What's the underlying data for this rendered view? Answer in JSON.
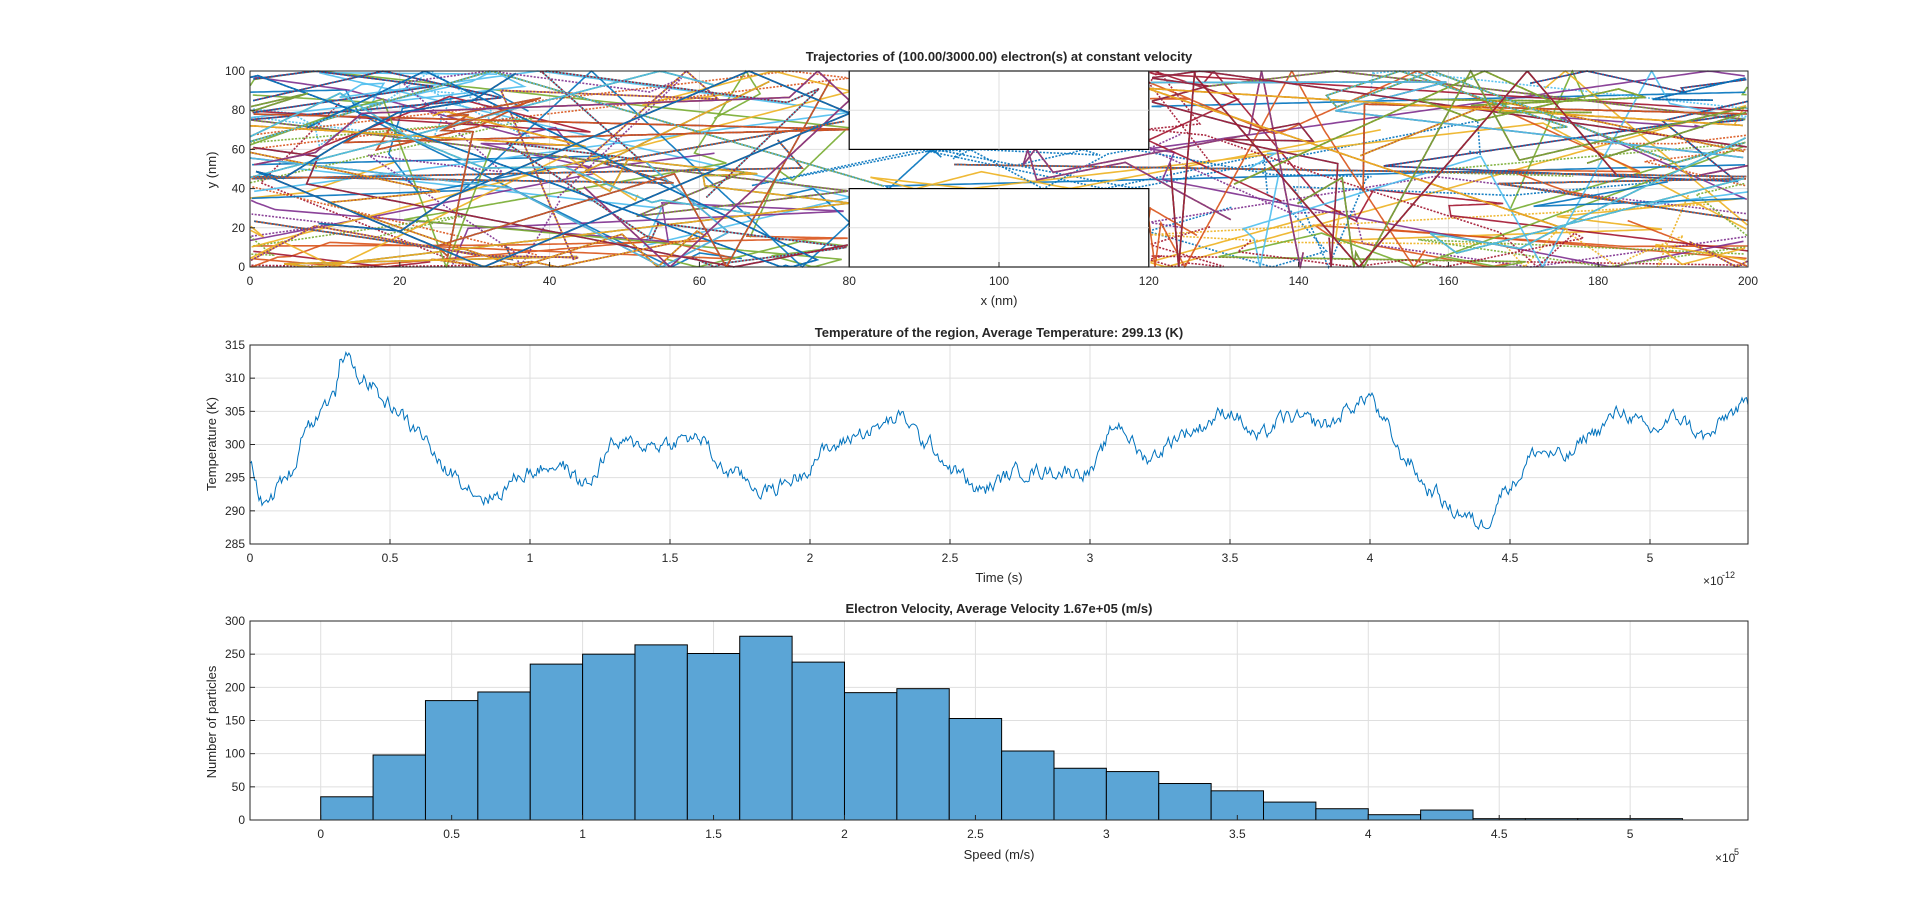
{
  "chart_data": [
    {
      "type": "line",
      "title": "Trajectories of (100.00/3000.00) electron(s) at constant velocity",
      "xlabel": "x (nm)",
      "ylabel": "y (nm)",
      "xlim": [
        0,
        200
      ],
      "ylim": [
        0,
        100
      ],
      "xticks": [
        "0",
        "20",
        "40",
        "60",
        "80",
        "100",
        "120",
        "140",
        "160",
        "180",
        "200"
      ],
      "yticks": [
        "0",
        "20",
        "40",
        "60",
        "80",
        "100"
      ],
      "grid": true,
      "num_trajectories": 100,
      "obstacles": [
        {
          "x": [
            80,
            120
          ],
          "y": [
            60,
            100
          ]
        },
        {
          "x": [
            80,
            120
          ],
          "y": [
            0,
            40
          ]
        }
      ],
      "series_colors": [
        "#0072bd",
        "#d95319",
        "#edb120",
        "#7e2f8e",
        "#77ac30",
        "#4dbeee",
        "#a2142f"
      ]
    },
    {
      "type": "line",
      "title": "Temperature of the region, Average Temperature: 299.13 (K)",
      "xlabel": "Time (s)",
      "ylabel": "Temperature (K)",
      "xlim": [
        0,
        5.35e-12
      ],
      "ylim": [
        285,
        315
      ],
      "xticks": [
        "0",
        "0.5",
        "1",
        "1.5",
        "2",
        "2.5",
        "3",
        "3.5",
        "4",
        "4.5",
        "5"
      ],
      "yticks": [
        "285",
        "290",
        "295",
        "300",
        "305",
        "310",
        "315"
      ],
      "x_multiplier_base": "×10",
      "x_multiplier_exp": "-12",
      "grid": true,
      "line_color": "#0072bd",
      "keypoints": [
        [
          0,
          297
        ],
        [
          0.05,
          291
        ],
        [
          0.15,
          296
        ],
        [
          0.2,
          303
        ],
        [
          0.3,
          307
        ],
        [
          0.33,
          313.5
        ],
        [
          0.4,
          310
        ],
        [
          0.5,
          306
        ],
        [
          0.6,
          302
        ],
        [
          0.7,
          296
        ],
        [
          0.85,
          292
        ],
        [
          1.0,
          296
        ],
        [
          1.1,
          297
        ],
        [
          1.2,
          294
        ],
        [
          1.3,
          300
        ],
        [
          1.45,
          300
        ],
        [
          1.6,
          301
        ],
        [
          1.7,
          296
        ],
        [
          1.85,
          293
        ],
        [
          1.95,
          295
        ],
        [
          2.05,
          299
        ],
        [
          2.2,
          302
        ],
        [
          2.33,
          304
        ],
        [
          2.42,
          300
        ],
        [
          2.52,
          296
        ],
        [
          2.6,
          293
        ],
        [
          2.75,
          296
        ],
        [
          2.9,
          296
        ],
        [
          3.0,
          296
        ],
        [
          3.1,
          303
        ],
        [
          3.2,
          298
        ],
        [
          3.35,
          302
        ],
        [
          3.5,
          305
        ],
        [
          3.6,
          301
        ],
        [
          3.7,
          304
        ],
        [
          3.85,
          303
        ],
        [
          3.95,
          306
        ],
        [
          4.0,
          307.5
        ],
        [
          4.05,
          303
        ],
        [
          4.12,
          298
        ],
        [
          4.22,
          293
        ],
        [
          4.3,
          290
        ],
        [
          4.4,
          288
        ],
        [
          4.5,
          294
        ],
        [
          4.6,
          299
        ],
        [
          4.7,
          298
        ],
        [
          4.8,
          302
        ],
        [
          4.9,
          305
        ],
        [
          5.0,
          302
        ],
        [
          5.1,
          304
        ],
        [
          5.2,
          301
        ],
        [
          5.3,
          305
        ],
        [
          5.35,
          306
        ]
      ]
    },
    {
      "type": "bar",
      "title": "Electron Velocity, Average Velocity 1.67e+05 (m/s)",
      "xlabel": "Speed (m/s)",
      "ylabel": "Number of particles",
      "xlim": [
        -27000.0,
        545000.0
      ],
      "ylim": [
        0,
        300
      ],
      "xticks": [
        "0",
        "0.5",
        "1",
        "1.5",
        "2",
        "2.5",
        "3",
        "3.5",
        "4",
        "4.5",
        "5"
      ],
      "yticks": [
        "0",
        "50",
        "100",
        "150",
        "200",
        "250",
        "300"
      ],
      "x_multiplier_base": "×10",
      "x_multiplier_exp": "5",
      "grid": true,
      "bar_color": "#5ba5d6",
      "bin_edges": [
        0,
        20000.0,
        40000.0,
        60000.0,
        80000.0,
        100000.0,
        120000.0,
        140000.0,
        160000.0,
        180000.0,
        200000.0,
        220000.0,
        240000.0,
        260000.0,
        280000.0,
        300000.0,
        320000.0,
        340000.0,
        360000.0,
        380000.0,
        400000.0,
        420000.0,
        440000.0,
        460000.0,
        480000.0,
        500000.0,
        520000.0
      ],
      "values": [
        35,
        98,
        180,
        193,
        235,
        250,
        264,
        251,
        277,
        238,
        192,
        198,
        153,
        104,
        78,
        73,
        55,
        44,
        27,
        17,
        8,
        15,
        2,
        2,
        2,
        2
      ]
    }
  ]
}
